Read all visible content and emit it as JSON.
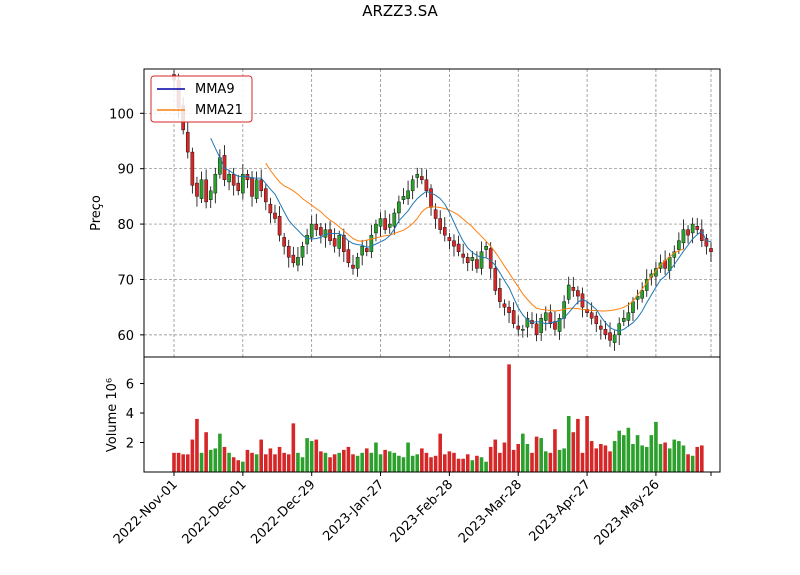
{
  "title": "ARZZ3.SA",
  "chart_data": [
    {
      "type": "candlestick",
      "panel": "price",
      "ylabel": "Preço",
      "ylim": [
        56,
        108
      ],
      "yticks": [
        60,
        70,
        80,
        90,
        100
      ],
      "grid": true,
      "legend": {
        "position": "top-left",
        "entries": [
          {
            "name": "MMA9",
            "color": "#0000aa"
          },
          {
            "name": "MMA21",
            "color": "#ff7f0e"
          }
        ]
      },
      "up_color": "#2ca02c",
      "down_color": "#d62728",
      "ma9_color": "#1f77b4",
      "ma21_color": "#ff7f0e",
      "closes": [
        106,
        101,
        97,
        93,
        87,
        85,
        88,
        84,
        86,
        89,
        92,
        88,
        89,
        87,
        86,
        89,
        88,
        85,
        88,
        86,
        84,
        82,
        81,
        78,
        76,
        74,
        73,
        74,
        76,
        78,
        80,
        79,
        78,
        79,
        77,
        76,
        78,
        75,
        73,
        72,
        74,
        76,
        75,
        78,
        80,
        81,
        79,
        80,
        82,
        84,
        85,
        86,
        88,
        89,
        88,
        86,
        83,
        81,
        79,
        78,
        77,
        76,
        75,
        74,
        73,
        74,
        72,
        75,
        76,
        72,
        68,
        66,
        65,
        64,
        62,
        61,
        61,
        63,
        62,
        60,
        63,
        64,
        62,
        61,
        63,
        66,
        69,
        68,
        67,
        65,
        64,
        63,
        62,
        61,
        60,
        59,
        60,
        62,
        63,
        64,
        66,
        67,
        68,
        70,
        71,
        72,
        73,
        72,
        74,
        75,
        77,
        79,
        78,
        80,
        79,
        77,
        76,
        75
      ],
      "ma9": [
        null,
        null,
        null,
        null,
        null,
        null,
        null,
        null,
        95.5,
        93.7,
        92.0,
        90.1,
        89.7,
        89.1,
        88.6,
        88.6,
        88.6,
        88.3,
        88.3,
        88.3,
        87.3,
        86.3,
        85.4,
        83.8,
        82.2,
        80.7,
        79.7,
        78.9,
        78.0,
        77.4,
        77.3,
        77.4,
        77.6,
        78.1,
        78.3,
        78.3,
        78.3,
        77.8,
        77.0,
        76.5,
        76.3,
        76.2,
        75.8,
        76.0,
        76.4,
        76.8,
        77.2,
        77.9,
        79.1,
        80.6,
        81.5,
        82.4,
        83.6,
        84.6,
        85.3,
        85.9,
        85.6,
        85.2,
        84.6,
        83.6,
        82.1,
        80.3,
        78.5,
        76.9,
        75.7,
        74.9,
        74.3,
        74.0,
        73.9,
        73.5,
        72.5,
        71.2,
        69.8,
        68.5,
        66.7,
        64.9,
        63.6,
        62.7,
        62.2,
        62.4,
        62.3,
        62.0,
        62.2,
        62.3,
        62.6,
        63.1,
        64.0,
        65.0,
        65.9,
        66.4,
        66.0,
        65.3,
        64.6,
        63.3,
        62.2,
        61.3,
        60.9,
        60.7,
        61.0,
        61.6,
        62.2,
        63.1,
        64.3,
        65.8,
        67.2,
        68.6,
        69.9,
        70.6,
        71.6,
        72.7,
        73.9,
        75.1,
        76.2,
        77.3,
        78.1,
        78.7,
        77.0,
        76.8
      ],
      "ma21": [
        null,
        null,
        null,
        null,
        null,
        null,
        null,
        null,
        null,
        null,
        null,
        null,
        null,
        null,
        null,
        null,
        null,
        null,
        null,
        null,
        91.0,
        89.7,
        88.6,
        87.6,
        86.9,
        86.5,
        86.0,
        85.4,
        84.6,
        84.0,
        83.4,
        82.8,
        82.2,
        81.4,
        80.7,
        80.2,
        79.5,
        78.8,
        78.1,
        77.4,
        77.0,
        76.9,
        77.1,
        77.3,
        77.5,
        77.7,
        77.9,
        78.0,
        78.3,
        78.6,
        78.9,
        79.4,
        80.1,
        81.0,
        82.2,
        82.9,
        83.1,
        83.1,
        83.0,
        82.8,
        82.5,
        82.1,
        81.6,
        80.9,
        80.2,
        79.5,
        78.6,
        77.8,
        76.9,
        76.0,
        74.9,
        73.7,
        72.4,
        71.2,
        69.9,
        68.7,
        67.4,
        66.4,
        65.5,
        64.8,
        64.6,
        64.5,
        64.4,
        64.3,
        64.4,
        64.6,
        64.8,
        64.8,
        64.7,
        64.6,
        64.5,
        64.4,
        64.4,
        64.3,
        64.3,
        64.4,
        64.5,
        64.7,
        65.0,
        65.4,
        66.1,
        67.2,
        68.3,
        69.4,
        70.5,
        71.6,
        72.6,
        73.4,
        74.1,
        74.8,
        75.2,
        75.5
      ]
    },
    {
      "type": "bar",
      "panel": "volume",
      "ylabel": "Volume  10⁶",
      "scale_label": "10⁶",
      "ylim": [
        0,
        7.8
      ],
      "yticks": [
        2,
        4,
        6
      ],
      "values": [
        1.3,
        1.3,
        1.2,
        1.2,
        2.2,
        3.6,
        1.3,
        2.7,
        1.5,
        1.6,
        2.6,
        1.7,
        1.3,
        1.0,
        0.8,
        0.7,
        1.5,
        1.3,
        1.2,
        2.2,
        1.2,
        1.6,
        1.2,
        1.7,
        1.3,
        1.2,
        3.3,
        1.3,
        1.0,
        2.3,
        2.1,
        2.2,
        1.4,
        1.3,
        1.0,
        1.2,
        1.3,
        1.5,
        1.7,
        1.2,
        1.1,
        1.3,
        1.6,
        1.3,
        2.0,
        1.2,
        1.5,
        1.4,
        1.3,
        1.1,
        1.0,
        2.0,
        1.1,
        1.2,
        1.6,
        1.3,
        1.0,
        1.1,
        2.6,
        1.2,
        1.4,
        1.3,
        0.9,
        0.9,
        1.2,
        0.8,
        1.1,
        1.0,
        0.7,
        1.7,
        2.2,
        1.3,
        2.0,
        7.3,
        1.5,
        1.9,
        2.6,
        1.9,
        1.3,
        2.4,
        2.3,
        1.4,
        1.3,
        2.9,
        1.5,
        1.6,
        3.8,
        2.7,
        3.6,
        1.3,
        3.8,
        2.1,
        1.6,
        1.9,
        1.8,
        1.4,
        2.1,
        2.8,
        2.5,
        3.0,
        1.9,
        2.5,
        1.8,
        1.7,
        2.5,
        3.4,
        1.9,
        2.0,
        1.6,
        2.2,
        2.1,
        1.8,
        1.2,
        1.1,
        1.7,
        1.8
      ],
      "colors_follow_candles": true
    }
  ],
  "x_axis": {
    "tick_labels": [
      "2022-Nov-01",
      "2022-Dec-01",
      "2022-Dec-29",
      "2023-Jan-27",
      "2023-Feb-28",
      "2023-Mar-28",
      "2023-Apr-27",
      "2023-May-26"
    ],
    "tick_indices": [
      0,
      15,
      30,
      45,
      60,
      75,
      90,
      105
    ]
  }
}
